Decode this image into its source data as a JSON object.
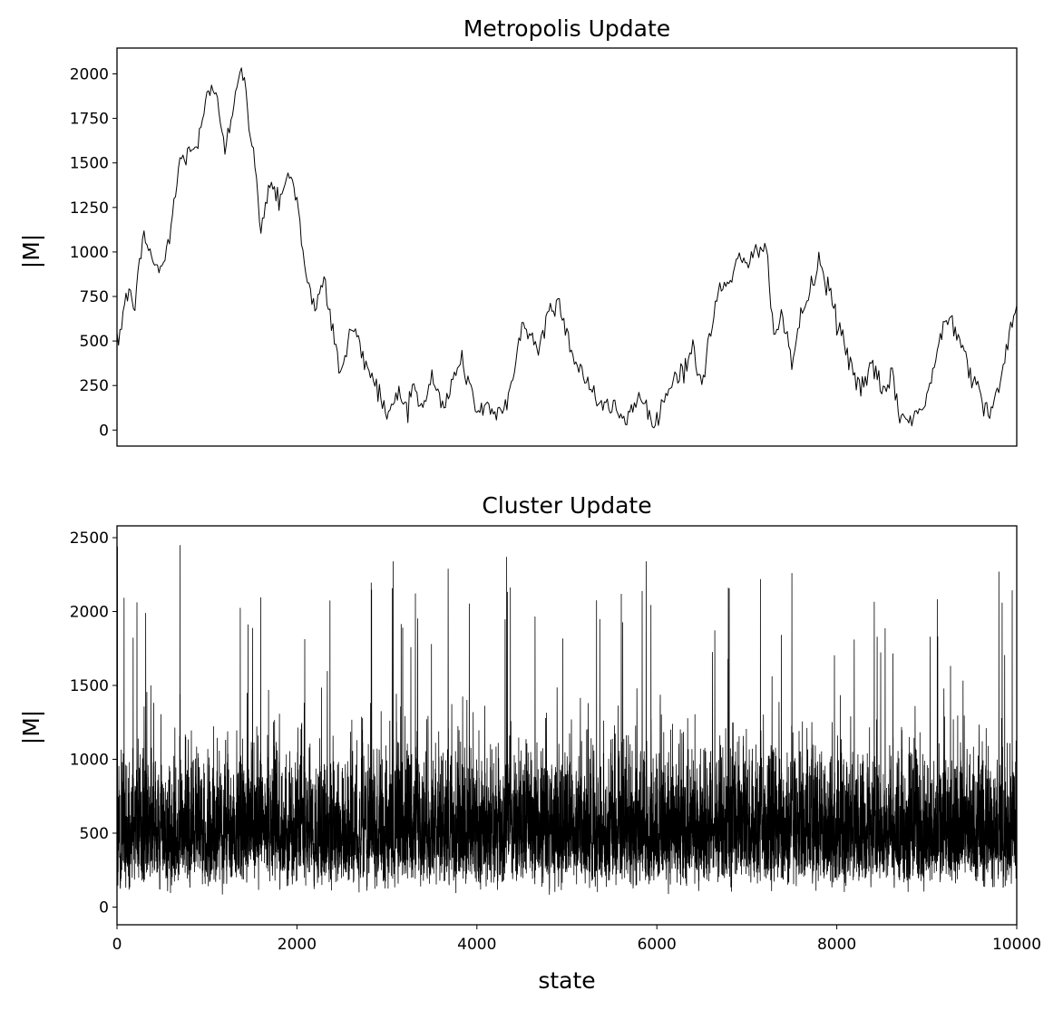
{
  "chart_data": [
    {
      "type": "line",
      "title": "Metropolis Update",
      "xlabel": "",
      "ylabel": "|M|",
      "xlim": [
        0,
        10000
      ],
      "ylim": [
        -90,
        2145
      ],
      "x_ticks_visible": false,
      "yticks": [
        "0",
        "250",
        "500",
        "750",
        "1000",
        "1250",
        "1500",
        "1750",
        "2000"
      ],
      "grid": false,
      "color": "#000000",
      "series": [
        {
          "x": [
            0,
            100,
            200,
            300,
            400,
            500,
            600,
            700,
            800,
            900,
            1000,
            1100,
            1200,
            1300,
            1400,
            1500,
            1600,
            1700,
            1800,
            1900,
            2000,
            2100,
            2200,
            2300,
            2400,
            2500,
            2600,
            2700,
            2800,
            2900,
            3000,
            3100,
            3200,
            3300,
            3400,
            3500,
            3600,
            3700,
            3800,
            3900,
            4000,
            4100,
            4200,
            4300,
            4400,
            4500,
            4600,
            4700,
            4800,
            4900,
            5000,
            5100,
            5200,
            5300,
            5400,
            5500,
            5600,
            5700,
            5800,
            5900,
            6000,
            6100,
            6200,
            6300,
            6400,
            6500,
            6600,
            6700,
            6800,
            6900,
            7000,
            7100,
            7200,
            7300,
            7400,
            7500,
            7600,
            7700,
            7800,
            7900,
            8000,
            8100,
            8200,
            8300,
            8400,
            8500,
            8600,
            8700,
            8800,
            8900,
            9000,
            9100,
            9200,
            9300,
            9400,
            9500,
            9600,
            9700,
            9800,
            9900,
            10000
          ],
          "values": [
            450,
            760,
            720,
            1100,
            950,
            880,
            1150,
            1500,
            1580,
            1600,
            1860,
            1920,
            1600,
            1850,
            2010,
            1600,
            1150,
            1400,
            1300,
            1450,
            1300,
            900,
            650,
            850,
            550,
            300,
            600,
            450,
            350,
            250,
            50,
            200,
            150,
            250,
            100,
            300,
            150,
            200,
            400,
            300,
            100,
            150,
            60,
            100,
            300,
            600,
            520,
            450,
            700,
            720,
            550,
            380,
            300,
            200,
            100,
            150,
            60,
            100,
            200,
            100,
            50,
            200,
            300,
            350,
            450,
            250,
            550,
            800,
            850,
            950,
            900,
            1000,
            1100,
            550,
            600,
            380,
            650,
            750,
            950,
            800,
            620,
            450,
            300,
            250,
            350,
            200,
            300,
            100,
            50,
            100,
            150,
            400,
            650,
            600,
            500,
            300,
            200,
            100,
            250,
            450,
            700
          ]
        }
      ]
    },
    {
      "type": "line",
      "title": "Cluster Update",
      "xlabel": "state",
      "ylabel": "|M|",
      "xlim": [
        0,
        10000
      ],
      "ylim": [
        -120,
        2580
      ],
      "xticks": [
        "0",
        "2000",
        "4000",
        "6000",
        "8000",
        "10000"
      ],
      "yticks": [
        "0",
        "500",
        "1000",
        "1500",
        "2000",
        "2500"
      ],
      "grid": false,
      "color": "#000000",
      "series": [
        {
          "x_start": 0,
          "x_end": 10000,
          "n_points": 10000,
          "approx_mean": 650,
          "approx_min": 0,
          "approx_max": 2450,
          "peaks": [
            {
              "x": 5,
              "y": 2440
            },
            {
              "x": 700,
              "y": 2450
            },
            {
              "x": 3070,
              "y": 2340
            },
            {
              "x": 3680,
              "y": 2290
            },
            {
              "x": 4330,
              "y": 2370
            },
            {
              "x": 5880,
              "y": 2340
            },
            {
              "x": 7150,
              "y": 2220
            },
            {
              "x": 7500,
              "y": 2260
            },
            {
              "x": 9800,
              "y": 2270
            }
          ]
        }
      ]
    }
  ]
}
